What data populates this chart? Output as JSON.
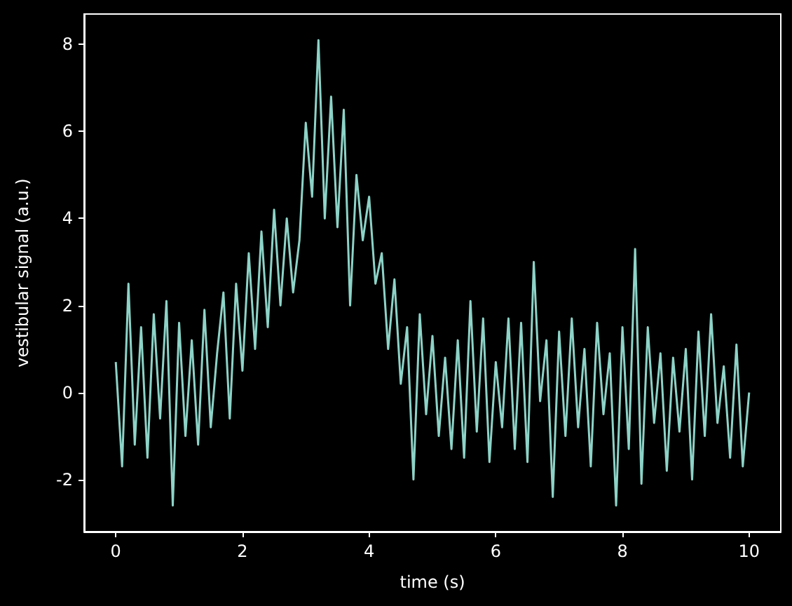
{
  "chart_data": {
    "type": "line",
    "xlabel": "time (s)",
    "ylabel": "vestibular signal (a.u.)",
    "xlim": [
      -0.5,
      10.5
    ],
    "ylim": [
      -3.2,
      8.7
    ],
    "xticks": [
      0,
      2,
      4,
      6,
      8,
      10
    ],
    "yticks": [
      -2,
      0,
      2,
      4,
      6,
      8
    ],
    "grid": false,
    "marker": "none",
    "x": [
      0,
      0.1,
      0.2,
      0.3,
      0.4,
      0.5,
      0.6,
      0.7,
      0.8,
      0.9,
      1,
      1.1,
      1.2,
      1.3,
      1.4,
      1.5,
      1.6,
      1.7,
      1.8,
      1.9,
      2,
      2.1,
      2.2,
      2.3,
      2.4,
      2.5,
      2.6,
      2.7,
      2.8,
      2.9,
      3,
      3.1,
      3.2,
      3.3,
      3.4,
      3.5,
      3.6,
      3.7,
      3.8,
      3.9,
      4,
      4.1,
      4.2,
      4.3,
      4.4,
      4.5,
      4.6,
      4.7,
      4.8,
      4.9,
      5,
      5.1,
      5.2,
      5.3,
      5.4,
      5.5,
      5.6,
      5.7,
      5.8,
      5.9,
      6,
      6.1,
      6.2,
      6.3,
      6.4,
      6.5,
      6.6,
      6.7,
      6.8,
      6.9,
      7,
      7.1,
      7.2,
      7.3,
      7.4,
      7.5,
      7.6,
      7.7,
      7.8,
      7.9,
      8,
      8.1,
      8.2,
      8.3,
      8.4,
      8.5,
      8.6,
      8.7,
      8.8,
      8.9,
      9,
      9.1,
      9.2,
      9.3,
      9.4,
      9.5,
      9.6,
      9.7,
      9.8,
      9.9,
      10
    ],
    "series": [
      {
        "color": "#8dd3c7",
        "values": [
          0.7,
          -1.7,
          2.5,
          -1.2,
          1.5,
          -1.5,
          1.8,
          -0.6,
          2.1,
          -2.6,
          1.6,
          -1.0,
          1.2,
          -1.2,
          1.9,
          -0.8,
          0.9,
          2.3,
          -0.6,
          2.5,
          0.5,
          3.2,
          1.0,
          3.7,
          1.5,
          4.2,
          2.0,
          4.0,
          2.3,
          3.5,
          6.2,
          4.5,
          8.1,
          4.0,
          6.8,
          3.8,
          6.5,
          2.0,
          5.0,
          3.5,
          4.5,
          2.5,
          3.2,
          1.0,
          2.6,
          0.2,
          1.5,
          -2.0,
          1.8,
          -0.5,
          1.3,
          -1.0,
          0.8,
          -1.3,
          1.2,
          -1.5,
          2.1,
          -0.9,
          1.7,
          -1.6,
          0.7,
          -0.8,
          1.7,
          -1.3,
          1.6,
          -1.6,
          3.0,
          -0.2,
          1.2,
          -2.4,
          1.4,
          -1.0,
          1.7,
          -0.8,
          1.0,
          -1.7,
          1.6,
          -0.5,
          0.9,
          -2.6,
          1.5,
          -1.3,
          3.3,
          -2.1,
          1.5,
          -0.7,
          0.9,
          -1.8,
          0.8,
          -0.9,
          1.0,
          -2.0,
          1.4,
          -1.0,
          1.8,
          -0.7,
          0.6,
          -1.5,
          1.1,
          -1.7,
          0.0
        ]
      }
    ]
  }
}
